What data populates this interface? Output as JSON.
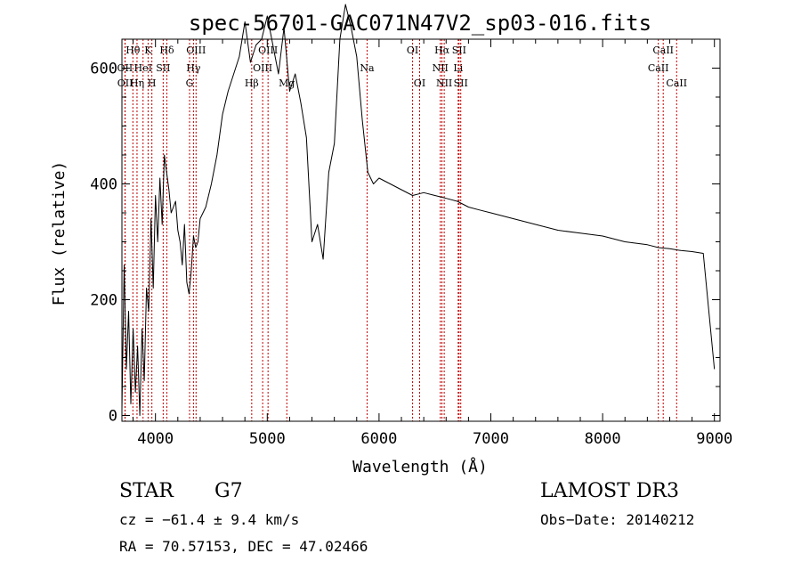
{
  "chart_data": {
    "type": "line",
    "title": "spec-56701-GAC071N47V2_sp03-016.fits",
    "xlabel": "Wavelength (Å)",
    "ylabel": "Flux (relative)",
    "xlim": [
      3700,
      9050
    ],
    "ylim": [
      -10,
      650
    ],
    "x_ticks": [
      4000,
      5000,
      6000,
      7000,
      8000,
      9000
    ],
    "x_tick_labels": [
      "4000",
      "5000",
      "6000",
      "7000",
      "8000",
      "9000"
    ],
    "y_ticks": [
      0,
      200,
      400,
      600
    ],
    "y_tick_labels": [
      "0",
      "200",
      "400",
      "600"
    ],
    "series": [
      {
        "name": "spectrum",
        "color": "#000000",
        "x": [
          3700,
          3720,
          3740,
          3760,
          3780,
          3800,
          3820,
          3840,
          3860,
          3880,
          3900,
          3920,
          3940,
          3960,
          3980,
          4000,
          4020,
          4040,
          4060,
          4080,
          4100,
          4120,
          4140,
          4160,
          4180,
          4200,
          4220,
          4240,
          4260,
          4280,
          4300,
          4320,
          4340,
          4360,
          4380,
          4400,
          4450,
          4500,
          4550,
          4600,
          4650,
          4700,
          4750,
          4800,
          4850,
          4900,
          4950,
          5000,
          5050,
          5100,
          5150,
          5200,
          5250,
          5300,
          5350,
          5400,
          5450,
          5500,
          5550,
          5600,
          5650,
          5700,
          5750,
          5800,
          5850,
          5900,
          5950,
          6000,
          6100,
          6200,
          6300,
          6400,
          6500,
          6600,
          6700,
          6800,
          6900,
          7000,
          7200,
          7400,
          7600,
          7800,
          8000,
          8200,
          8400,
          8500,
          8600,
          8700,
          8800,
          8900,
          9000
        ],
        "values": [
          10,
          260,
          80,
          180,
          20,
          150,
          40,
          120,
          0,
          150,
          60,
          220,
          180,
          340,
          220,
          380,
          300,
          410,
          330,
          450,
          420,
          390,
          350,
          360,
          370,
          320,
          300,
          260,
          330,
          230,
          210,
          250,
          310,
          290,
          300,
          340,
          360,
          400,
          450,
          520,
          560,
          590,
          620,
          680,
          610,
          640,
          650,
          690,
          640,
          590,
          670,
          560,
          590,
          540,
          480,
          300,
          330,
          270,
          420,
          470,
          650,
          710,
          670,
          620,
          510,
          420,
          400,
          410,
          400,
          390,
          380,
          385,
          380,
          375,
          370,
          360,
          355,
          350,
          340,
          330,
          320,
          315,
          310,
          300,
          295,
          290,
          288,
          285,
          283,
          280,
          80
        ]
      }
    ],
    "lines": [
      {
        "name": "Hθ",
        "x": 3798
      },
      {
        "name": "OII",
        "x": 3727
      },
      {
        "name": "OII",
        "x": 3729
      },
      {
        "name": "Hη",
        "x": 3835
      },
      {
        "name": "HeI",
        "x": 3889
      },
      {
        "name": "K",
        "x": 3934
      },
      {
        "name": "H",
        "x": 3968
      },
      {
        "name": "SII",
        "x": 4069
      },
      {
        "name": "Hδ",
        "x": 4102
      },
      {
        "name": "Hγ",
        "x": 4340
      },
      {
        "name": "G",
        "x": 4305
      },
      {
        "name": "OIII",
        "x": 4363
      },
      {
        "name": "Hβ",
        "x": 4861
      },
      {
        "name": "OIII",
        "x": 4959
      },
      {
        "name": "OIII",
        "x": 5007
      },
      {
        "name": "Mg",
        "x": 5175
      },
      {
        "name": "Na",
        "x": 5893
      },
      {
        "name": "OI",
        "x": 6300
      },
      {
        "name": "OI",
        "x": 6363
      },
      {
        "name": "NII",
        "x": 6548
      },
      {
        "name": "Hα",
        "x": 6563
      },
      {
        "name": "NII",
        "x": 6583
      },
      {
        "name": "Li",
        "x": 6708
      },
      {
        "name": "SII",
        "x": 6716
      },
      {
        "name": "SII",
        "x": 6731
      },
      {
        "name": "CaII",
        "x": 8498
      },
      {
        "name": "CaII",
        "x": 8542
      },
      {
        "name": "CaII",
        "x": 8662
      }
    ],
    "line_labels": [
      {
        "text": "Hθ",
        "x": 3798,
        "row": 0
      },
      {
        "text": "K",
        "x": 3934,
        "row": 0
      },
      {
        "text": "Hδ",
        "x": 4102,
        "row": 0
      },
      {
        "text": "OIII",
        "x": 4363,
        "row": 0
      },
      {
        "text": "OIII",
        "x": 5007,
        "row": 0
      },
      {
        "text": "OI",
        "x": 6300,
        "row": 0
      },
      {
        "text": "Hα",
        "x": 6563,
        "row": 0
      },
      {
        "text": "SII",
        "x": 6716,
        "row": 0
      },
      {
        "text": "CaII",
        "x": 8542,
        "row": 0
      },
      {
        "text": "OII",
        "x": 3727,
        "row": 1
      },
      {
        "text": "HeI",
        "x": 3889,
        "row": 1
      },
      {
        "text": "SII",
        "x": 4069,
        "row": 1
      },
      {
        "text": "Hγ",
        "x": 4340,
        "row": 1
      },
      {
        "text": "OIII",
        "x": 4959,
        "row": 1
      },
      {
        "text": "Na",
        "x": 5893,
        "row": 1
      },
      {
        "text": "NII",
        "x": 6548,
        "row": 1
      },
      {
        "text": "Li",
        "x": 6708,
        "row": 1
      },
      {
        "text": "CaII",
        "x": 8498,
        "row": 1
      },
      {
        "text": "OII",
        "x": 3729,
        "row": 2
      },
      {
        "text": "Hη",
        "x": 3835,
        "row": 2
      },
      {
        "text": "H",
        "x": 3968,
        "row": 2
      },
      {
        "text": "G",
        "x": 4305,
        "row": 2
      },
      {
        "text": "Hβ",
        "x": 4861,
        "row": 2
      },
      {
        "text": "Mg",
        "x": 5175,
        "row": 2
      },
      {
        "text": "OI",
        "x": 6363,
        "row": 2
      },
      {
        "text": "NII",
        "x": 6583,
        "row": 2
      },
      {
        "text": "SII",
        "x": 6731,
        "row": 2
      },
      {
        "text": "CaII",
        "x": 8662,
        "row": 2
      }
    ],
    "line_color": "#c00000",
    "grid": false
  },
  "info": {
    "object_class": "STAR",
    "subclass": "G7",
    "survey": "LAMOST DR3",
    "cz": "cz = −61.4 ± 9.4 km/s",
    "obs_date": "Obs−Date: 20140212",
    "coords": "RA =  70.57153, DEC =  47.02466"
  }
}
